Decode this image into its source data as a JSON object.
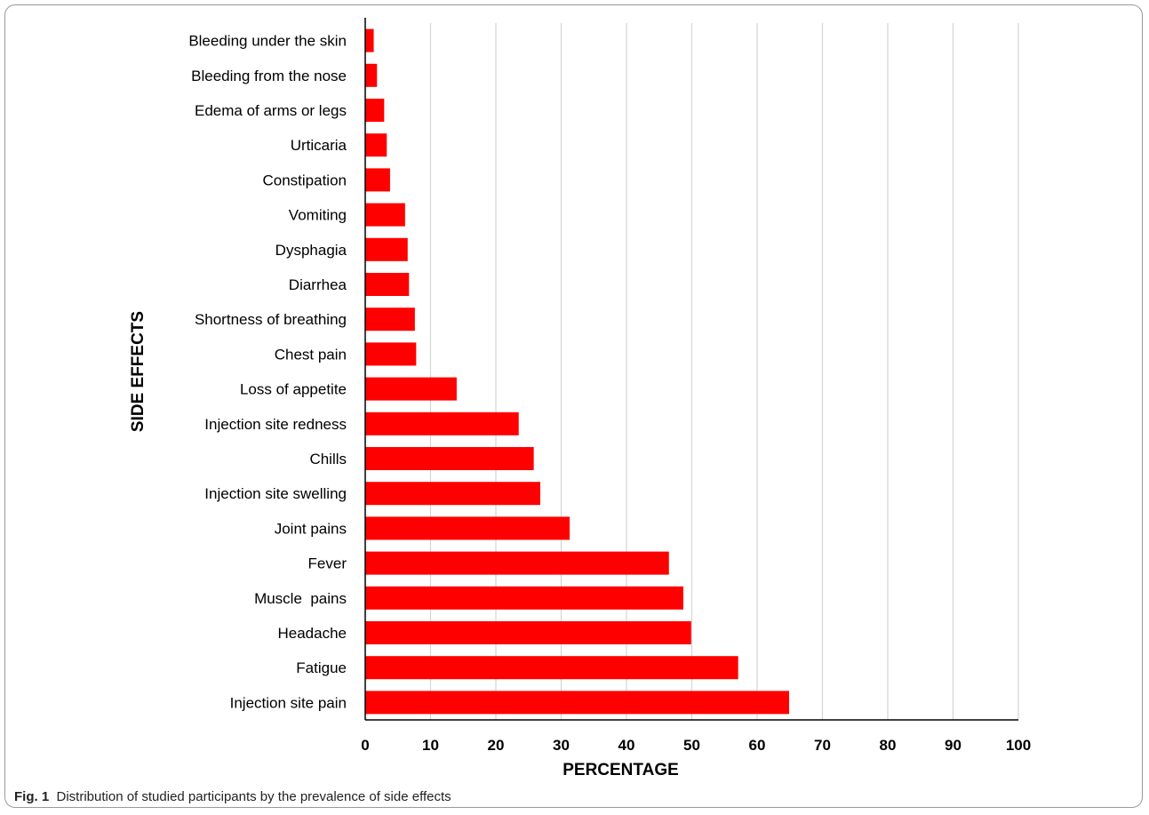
{
  "caption": {
    "label": "Fig. 1",
    "text": "Distribution of studied participants by the prevalence of side effects"
  },
  "chart_data": {
    "type": "bar",
    "orientation": "horizontal",
    "title": "",
    "xlabel": "PERCENTAGE",
    "ylabel": "SIDE EFFECTS",
    "xlim": [
      0,
      100
    ],
    "xticks": [
      0,
      10,
      20,
      30,
      40,
      50,
      60,
      70,
      80,
      90,
      100
    ],
    "grid": "vertical",
    "bar_color": "#ff0000",
    "categories": [
      "Bleeding under the skin",
      "Bleeding from the nose",
      "Edema of arms or legs",
      "Urticaria",
      "Constipation",
      "Vomiting",
      "Dysphagia",
      "Diarrhea",
      "Shortness of breathing",
      "Chest pain",
      "Loss of appetite",
      "Injection site redness",
      "Chills",
      "Injection site swelling",
      "Joint pains",
      "Fever",
      "Muscle  pains",
      "Headache",
      "Fatigue",
      "Injection site pain"
    ],
    "values": [
      1.3,
      1.8,
      2.9,
      3.3,
      3.8,
      6.1,
      6.5,
      6.7,
      7.6,
      7.8,
      14.0,
      23.5,
      25.8,
      26.8,
      31.3,
      46.5,
      48.7,
      49.9,
      57.1,
      64.9
    ]
  }
}
